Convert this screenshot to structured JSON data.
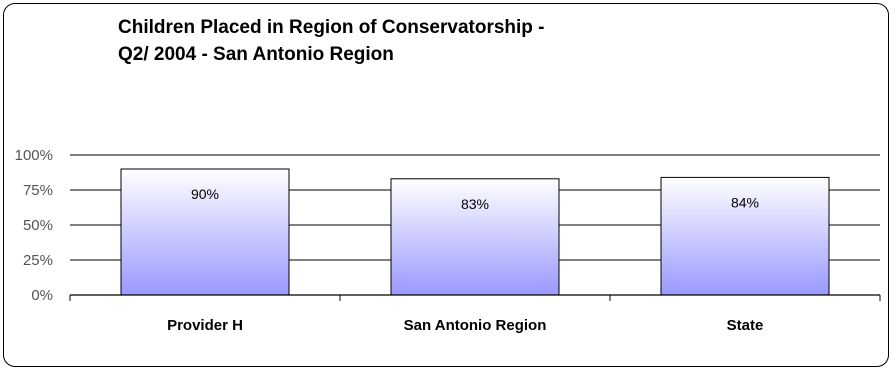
{
  "chart_data": {
    "type": "bar",
    "title": [
      "Children Placed in Region of Conservatorship -",
      "Q2/ 2004 - San Antonio Region"
    ],
    "categories": [
      "Provider H",
      "San Antonio Region",
      "State"
    ],
    "values": [
      90,
      83,
      84
    ],
    "data_labels": [
      "90%",
      "83%",
      "84%"
    ],
    "ylim": [
      0,
      100
    ],
    "y_ticks": [
      0,
      25,
      50,
      75,
      100
    ],
    "y_tick_labels": [
      "0%",
      "25%",
      "50%",
      "75%",
      "100%"
    ],
    "xlabel": "",
    "ylabel": "",
    "grid": true,
    "legend": "none",
    "bar_gradient": [
      "#ffffff",
      "#9999ff"
    ],
    "gridline_color": "#000000"
  }
}
